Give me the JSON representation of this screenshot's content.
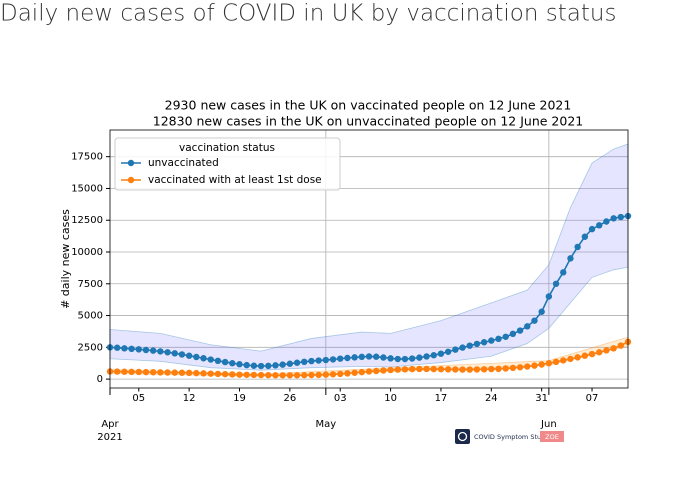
{
  "page": {
    "heading": "Daily new cases of COVID in UK by vaccination status",
    "logo": {
      "name": "COVID Symptom Study",
      "badge": "ZOE"
    }
  },
  "chart_data": {
    "type": "line",
    "title": [
      "2930 new cases in the UK on vaccinated people on 12 June 2021",
      "12830 new cases in the UK on unvaccinated people on 12 June 2021"
    ],
    "y_label": "# daily new cases",
    "legend_title": "vaccination status",
    "legend": "upper left",
    "grid": true,
    "ylim": [
      -700,
      19600
    ],
    "yticks": [
      0,
      2500,
      5000,
      7500,
      10000,
      12500,
      15000,
      17500
    ],
    "xlim": [
      "2021-04-01",
      "2021-06-12"
    ],
    "xticks": [
      {
        "value": "2021-04-05",
        "label": "05"
      },
      {
        "value": "2021-04-12",
        "label": "12"
      },
      {
        "value": "2021-04-19",
        "label": "19"
      },
      {
        "value": "2021-04-26",
        "label": "26"
      },
      {
        "value": "2021-05-03",
        "label": "03"
      },
      {
        "value": "2021-05-10",
        "label": "10"
      },
      {
        "value": "2021-05-17",
        "label": "17"
      },
      {
        "value": "2021-05-24",
        "label": "24"
      },
      {
        "value": "2021-05-31",
        "label": "31"
      },
      {
        "value": "2021-06-07",
        "label": "07"
      }
    ],
    "xticks_major": [
      {
        "value": "2021-04-01",
        "label": "Apr"
      },
      {
        "value": "2021-05-01",
        "label": "May"
      },
      {
        "value": "2021-06-01",
        "label": "Jun"
      }
    ],
    "year_label": "2021",
    "x": [
      "2021-04-01",
      "2021-04-02",
      "2021-04-03",
      "2021-04-04",
      "2021-04-05",
      "2021-04-06",
      "2021-04-07",
      "2021-04-08",
      "2021-04-09",
      "2021-04-10",
      "2021-04-11",
      "2021-04-12",
      "2021-04-13",
      "2021-04-14",
      "2021-04-15",
      "2021-04-16",
      "2021-04-17",
      "2021-04-18",
      "2021-04-19",
      "2021-04-20",
      "2021-04-21",
      "2021-04-22",
      "2021-04-23",
      "2021-04-24",
      "2021-04-25",
      "2021-04-26",
      "2021-04-27",
      "2021-04-28",
      "2021-04-29",
      "2021-04-30",
      "2021-05-01",
      "2021-05-02",
      "2021-05-03",
      "2021-05-04",
      "2021-05-05",
      "2021-05-06",
      "2021-05-07",
      "2021-05-08",
      "2021-05-09",
      "2021-05-10",
      "2021-05-11",
      "2021-05-12",
      "2021-05-13",
      "2021-05-14",
      "2021-05-15",
      "2021-05-16",
      "2021-05-17",
      "2021-05-18",
      "2021-05-19",
      "2021-05-20",
      "2021-05-21",
      "2021-05-22",
      "2021-05-23",
      "2021-05-24",
      "2021-05-25",
      "2021-05-26",
      "2021-05-27",
      "2021-05-28",
      "2021-05-29",
      "2021-05-30",
      "2021-05-31",
      "2021-06-01",
      "2021-06-02",
      "2021-06-03",
      "2021-06-04",
      "2021-06-05",
      "2021-06-06",
      "2021-06-07",
      "2021-06-08",
      "2021-06-09",
      "2021-06-10",
      "2021-06-11",
      "2021-06-12"
    ],
    "series": [
      {
        "name": "unvaccinated",
        "color": "#1f77b4",
        "band_color": "rgba(110,110,255,0.18)",
        "values": [
          2500,
          2470,
          2420,
          2380,
          2340,
          2290,
          2240,
          2180,
          2110,
          2030,
          1940,
          1840,
          1740,
          1640,
          1540,
          1440,
          1340,
          1250,
          1170,
          1100,
          1050,
          1030,
          1040,
          1080,
          1140,
          1210,
          1290,
          1360,
          1420,
          1460,
          1500,
          1550,
          1610,
          1660,
          1710,
          1750,
          1780,
          1760,
          1700,
          1630,
          1580,
          1580,
          1620,
          1690,
          1780,
          1880,
          2000,
          2150,
          2320,
          2480,
          2630,
          2770,
          2900,
          3030,
          3170,
          3330,
          3560,
          3820,
          4150,
          4600,
          5300,
          6500,
          7500,
          8400,
          9500,
          10400,
          11200,
          11800,
          12100,
          12400,
          12650,
          12750,
          12830
        ],
        "band": {
          "x": [
            "2021-04-01",
            "2021-04-08",
            "2021-04-15",
            "2021-04-22",
            "2021-04-29",
            "2021-05-06",
            "2021-05-10",
            "2021-05-17",
            "2021-05-24",
            "2021-05-29",
            "2021-06-01",
            "2021-06-04",
            "2021-06-07",
            "2021-06-10",
            "2021-06-12"
          ],
          "low": [
            1600,
            1400,
            900,
            700,
            900,
            1000,
            950,
            1300,
            1800,
            2800,
            4000,
            6000,
            8000,
            8600,
            8800
          ],
          "high": [
            3900,
            3600,
            2700,
            2200,
            3200,
            3700,
            3600,
            4600,
            6000,
            7000,
            9000,
            13500,
            17000,
            18100,
            18500
          ]
        }
      },
      {
        "name": "vaccinated with at least 1st dose",
        "color": "#ff7f0e",
        "band_color": "rgba(255,170,40,0.2)",
        "values": [
          600,
          590,
          580,
          570,
          560,
          550,
          540,
          530,
          520,
          510,
          500,
          490,
          470,
          450,
          430,
          410,
          390,
          370,
          350,
          340,
          330,
          320,
          310,
          300,
          300,
          300,
          300,
          310,
          320,
          330,
          350,
          380,
          410,
          450,
          500,
          550,
          600,
          640,
          680,
          720,
          750,
          770,
          790,
          800,
          800,
          790,
          780,
          770,
          760,
          750,
          750,
          760,
          770,
          790,
          810,
          840,
          880,
          930,
          990,
          1060,
          1150,
          1250,
          1360,
          1470,
          1590,
          1710,
          1840,
          1970,
          2110,
          2260,
          2420,
          2640,
          2930
        ],
        "band": {
          "x": [
            "2021-04-01",
            "2021-04-22",
            "2021-05-13",
            "2021-06-01",
            "2021-06-12"
          ],
          "low": [
            450,
            220,
            650,
            1100,
            2600
          ],
          "high": [
            750,
            400,
            950,
            1450,
            3300
          ]
        }
      }
    ]
  }
}
